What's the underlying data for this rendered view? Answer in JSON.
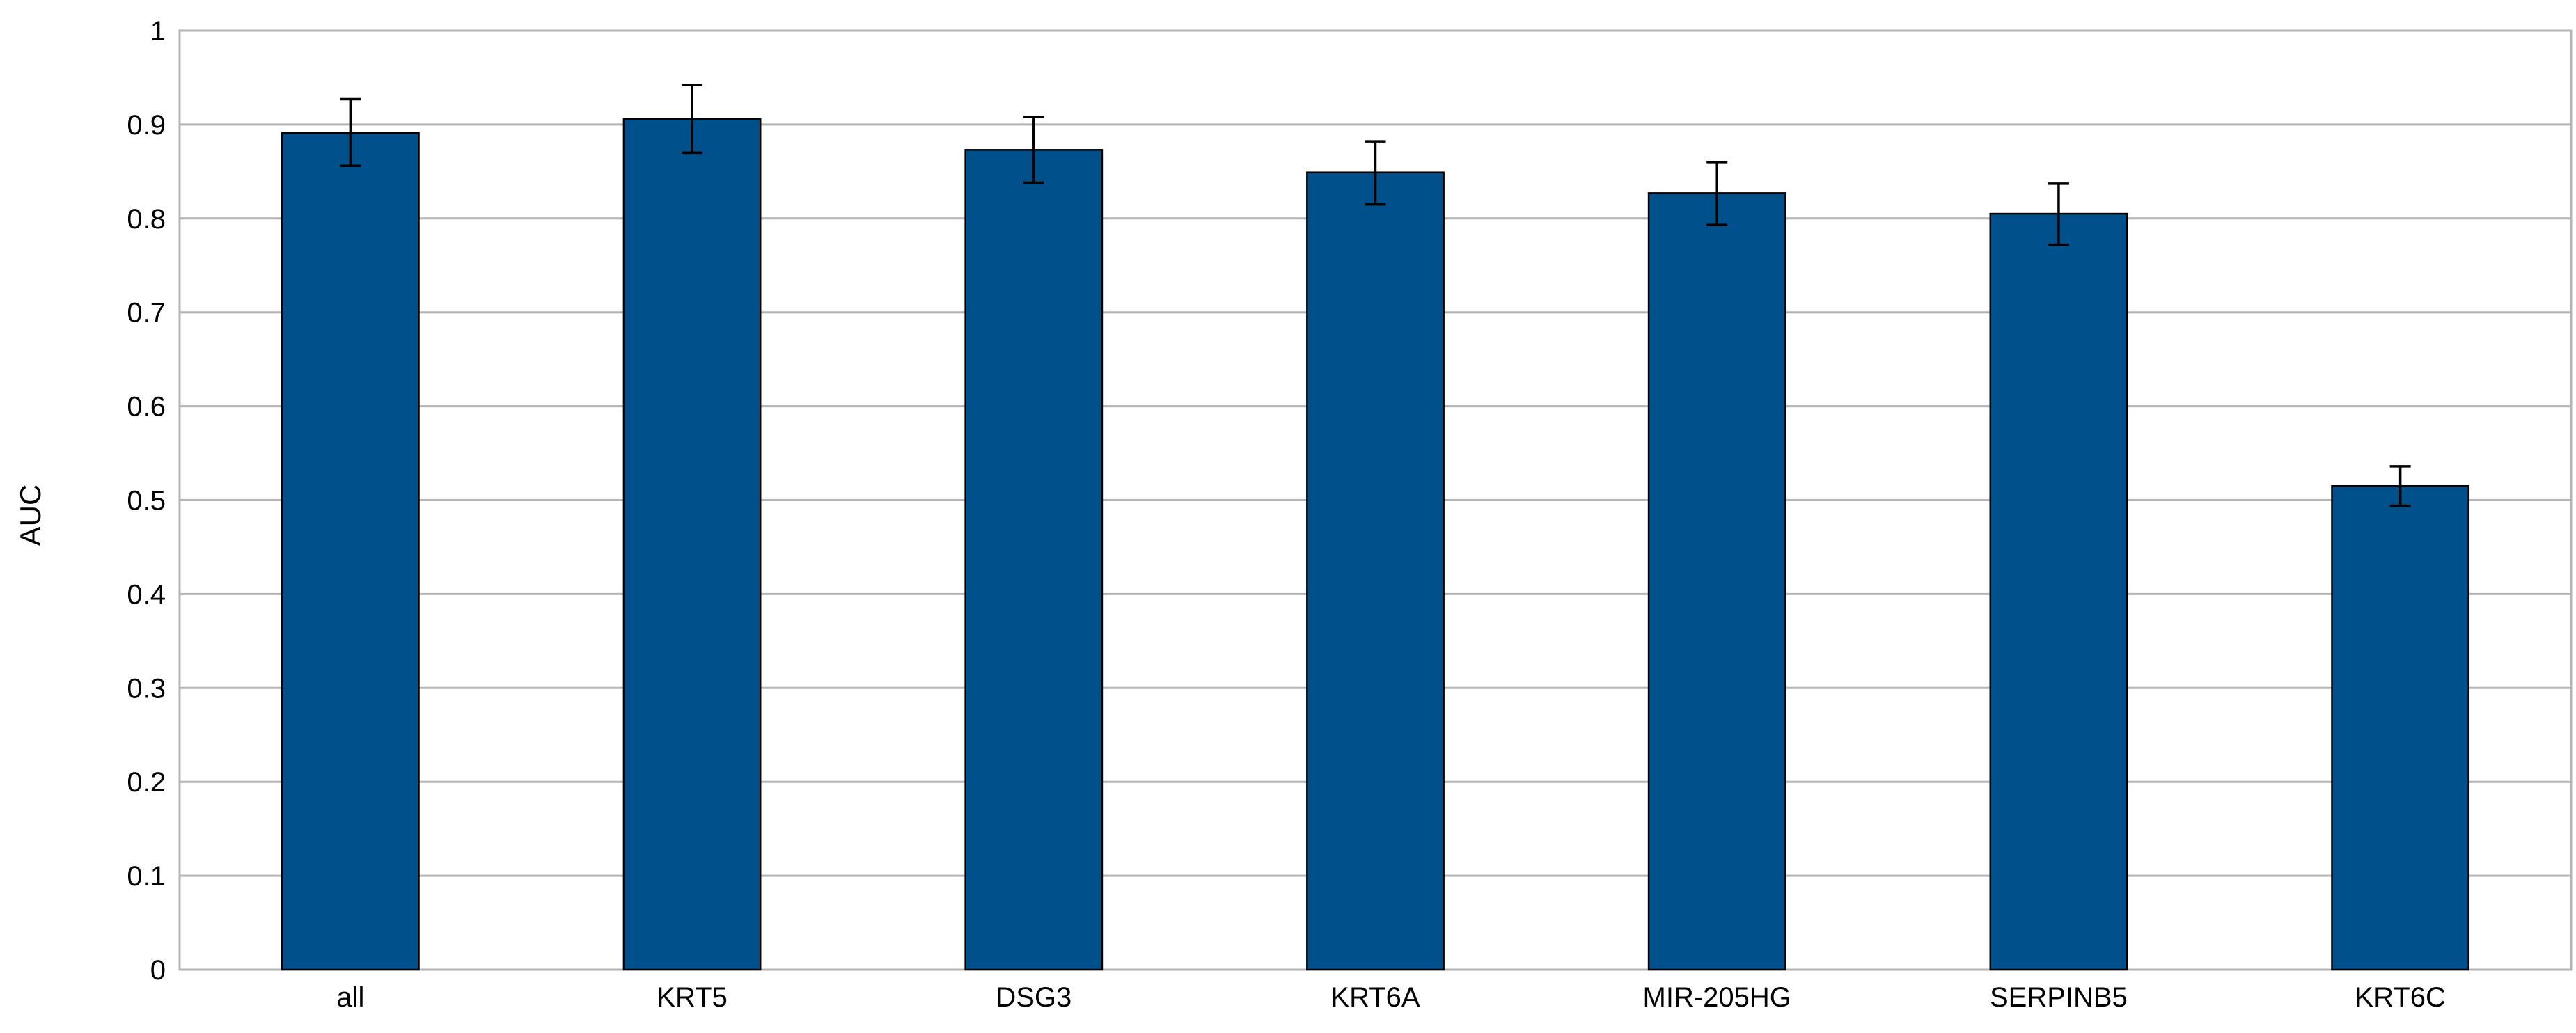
{
  "chart_data": {
    "type": "bar",
    "title": "",
    "xlabel": "",
    "ylabel": "AUC",
    "ylim": [
      0,
      1
    ],
    "ytick_step": 0.1,
    "yticks": [
      "0",
      "0.1",
      "0.2",
      "0.3",
      "0.4",
      "0.5",
      "0.6",
      "0.7",
      "0.8",
      "0.9",
      "1"
    ],
    "grid": true,
    "legend": "none",
    "bar_color": "#00508C",
    "categories": [
      "all",
      "KRT5",
      "DSG3",
      "KRT6A",
      "MIR-205HG",
      "SERPINB5",
      "KRT6C"
    ],
    "values": [
      0.891,
      0.906,
      0.873,
      0.849,
      0.827,
      0.805,
      0.515
    ],
    "error_upper": [
      0.927,
      0.942,
      0.908,
      0.882,
      0.86,
      0.837,
      0.536
    ],
    "error_lower": [
      0.856,
      0.87,
      0.838,
      0.815,
      0.793,
      0.772,
      0.494
    ]
  }
}
